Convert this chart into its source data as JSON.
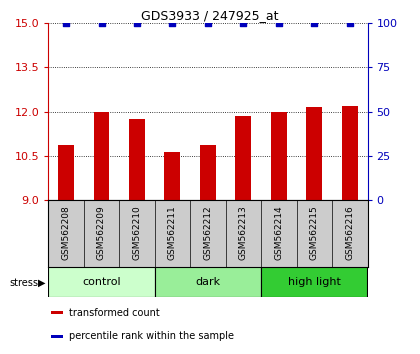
{
  "title": "GDS3933 / 247925_at",
  "samples": [
    "GSM562208",
    "GSM562209",
    "GSM562210",
    "GSM562211",
    "GSM562212",
    "GSM562213",
    "GSM562214",
    "GSM562215",
    "GSM562216"
  ],
  "transformed_counts": [
    10.85,
    12.0,
    11.75,
    10.62,
    10.85,
    11.85,
    12.0,
    12.15,
    12.2
  ],
  "percentile_ranks": [
    100,
    100,
    100,
    100,
    100,
    100,
    100,
    100,
    100
  ],
  "ylim_left": [
    9,
    15
  ],
  "ylim_right": [
    0,
    100
  ],
  "yticks_left": [
    9,
    10.5,
    12,
    13.5,
    15
  ],
  "yticks_right": [
    0,
    25,
    50,
    75,
    100
  ],
  "bar_color": "#cc0000",
  "dot_color": "#0000bb",
  "groups": [
    {
      "label": "control",
      "start": 0,
      "end": 3,
      "color": "#ccffcc"
    },
    {
      "label": "dark",
      "start": 3,
      "end": 6,
      "color": "#99ee99"
    },
    {
      "label": "high light",
      "start": 6,
      "end": 9,
      "color": "#33cc33"
    }
  ],
  "legend_items": [
    {
      "color": "#cc0000",
      "label": "transformed count"
    },
    {
      "color": "#0000bb",
      "label": "percentile rank within the sample"
    }
  ],
  "stress_label": "stress",
  "label_bg_color": "#cccccc",
  "background_color": "#ffffff",
  "tick_label_color_left": "#cc0000",
  "tick_label_color_right": "#0000bb"
}
